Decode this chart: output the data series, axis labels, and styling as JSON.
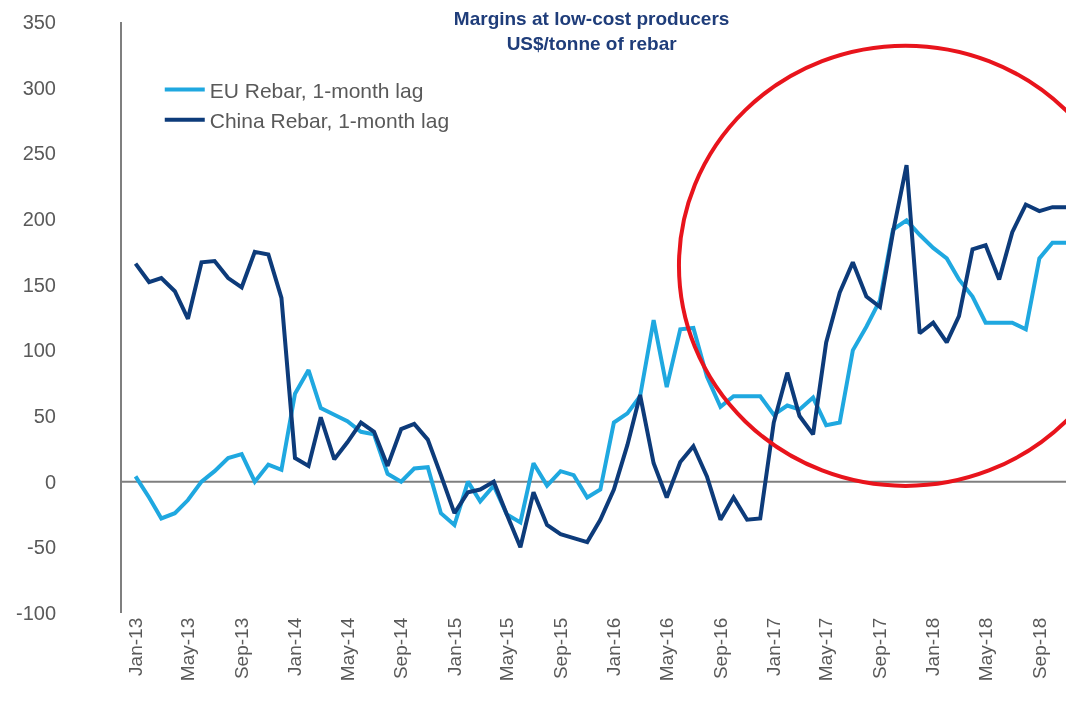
{
  "chart_data": {
    "type": "line",
    "title": "Margins at low-cost producers",
    "subtitle": "US$/tonne of rebar",
    "x": [
      "2013-01",
      "2013-02",
      "2013-03",
      "2013-04",
      "2013-05",
      "2013-06",
      "2013-07",
      "2013-08",
      "2013-09",
      "2013-10",
      "2013-11",
      "2013-12",
      "2014-01",
      "2014-02",
      "2014-03",
      "2014-04",
      "2014-05",
      "2014-06",
      "2014-07",
      "2014-08",
      "2014-09",
      "2014-10",
      "2014-11",
      "2014-12",
      "2015-01",
      "2015-02",
      "2015-03",
      "2015-04",
      "2015-05",
      "2015-06",
      "2015-07",
      "2015-08",
      "2015-09",
      "2015-10",
      "2015-11",
      "2015-12",
      "2016-01",
      "2016-02",
      "2016-03",
      "2016-04",
      "2016-05",
      "2016-06",
      "2016-07",
      "2016-08",
      "2016-09",
      "2016-10",
      "2016-11",
      "2016-12",
      "2017-01",
      "2017-02",
      "2017-03",
      "2017-04",
      "2017-05",
      "2017-06",
      "2017-07",
      "2017-08",
      "2017-09",
      "2017-10",
      "2017-11",
      "2017-12",
      "2018-01",
      "2018-02",
      "2018-03",
      "2018-04",
      "2018-05",
      "2018-06",
      "2018-07",
      "2018-08",
      "2018-09",
      "2018-10",
      "2018-11"
    ],
    "series": [
      {
        "name": "EU Rebar, 1-month lag",
        "color": "#1fa8e0",
        "values": [
          4,
          -12,
          -28,
          -24,
          -14,
          0,
          8,
          18,
          21,
          0,
          13,
          9,
          67,
          85,
          56,
          51,
          46,
          38,
          36,
          6,
          0,
          10,
          11,
          -24,
          -33,
          0,
          -15,
          -3,
          -25,
          -31,
          14,
          -3,
          8,
          5,
          -12,
          -6,
          45,
          52,
          65,
          123,
          72,
          116,
          117,
          80,
          57,
          65,
          65,
          65,
          51,
          58,
          55,
          64,
          43,
          45,
          100,
          118,
          138,
          192,
          199,
          188,
          178,
          170,
          154,
          141,
          121,
          121,
          121,
          116,
          170,
          182,
          182
        ]
      },
      {
        "name": "China Rebar, 1-month lag",
        "color": "#0d3b7a",
        "values": [
          166,
          152,
          155,
          145,
          124,
          167,
          168,
          155,
          148,
          175,
          173,
          140,
          18,
          12,
          49,
          17,
          30,
          45,
          38,
          12,
          40,
          44,
          32,
          5,
          -24,
          -8,
          -6,
          0,
          -25,
          -50,
          -8,
          -33,
          -40,
          -43,
          -46,
          -29,
          -6,
          28,
          66,
          14,
          -12,
          15,
          27,
          4,
          -29,
          -12,
          -29,
          -28,
          45,
          83,
          50,
          36,
          106,
          144,
          167,
          141,
          133,
          190,
          241,
          113,
          121,
          106,
          126,
          177,
          180,
          154,
          190,
          211,
          206,
          209,
          209
        ]
      }
    ],
    "xlim": [
      "2012-12-01",
      "2018-11-01"
    ],
    "xticks": [
      {
        "value": "2013-01",
        "label": "Jan-13"
      },
      {
        "value": "2013-05",
        "label": "May-13"
      },
      {
        "value": "2013-09",
        "label": "Sep-13"
      },
      {
        "value": "2014-01",
        "label": "Jan-14"
      },
      {
        "value": "2014-05",
        "label": "May-14"
      },
      {
        "value": "2014-09",
        "label": "Sep-14"
      },
      {
        "value": "2015-01",
        "label": "Jan-15"
      },
      {
        "value": "2015-05",
        "label": "May-15"
      },
      {
        "value": "2015-09",
        "label": "Sep-15"
      },
      {
        "value": "2016-01",
        "label": "Jan-16"
      },
      {
        "value": "2016-05",
        "label": "May-16"
      },
      {
        "value": "2016-09",
        "label": "Sep-16"
      },
      {
        "value": "2017-01",
        "label": "Jan-17"
      },
      {
        "value": "2017-05",
        "label": "May-17"
      },
      {
        "value": "2017-09",
        "label": "Sep-17"
      },
      {
        "value": "2018-01",
        "label": "Jan-18"
      },
      {
        "value": "2018-05",
        "label": "May-18"
      },
      {
        "value": "2018-09",
        "label": "Sep-18"
      }
    ],
    "ylim": [
      -100,
      350
    ],
    "yticks": [
      -100,
      -50,
      0,
      50,
      100,
      150,
      200,
      250,
      300,
      350
    ],
    "ref_lines": [
      {
        "axis": "y",
        "value": 0,
        "color": "#7f7f7f"
      }
    ],
    "grid": false,
    "legend": "top left",
    "marker": "none",
    "line_style": "solid"
  }
}
